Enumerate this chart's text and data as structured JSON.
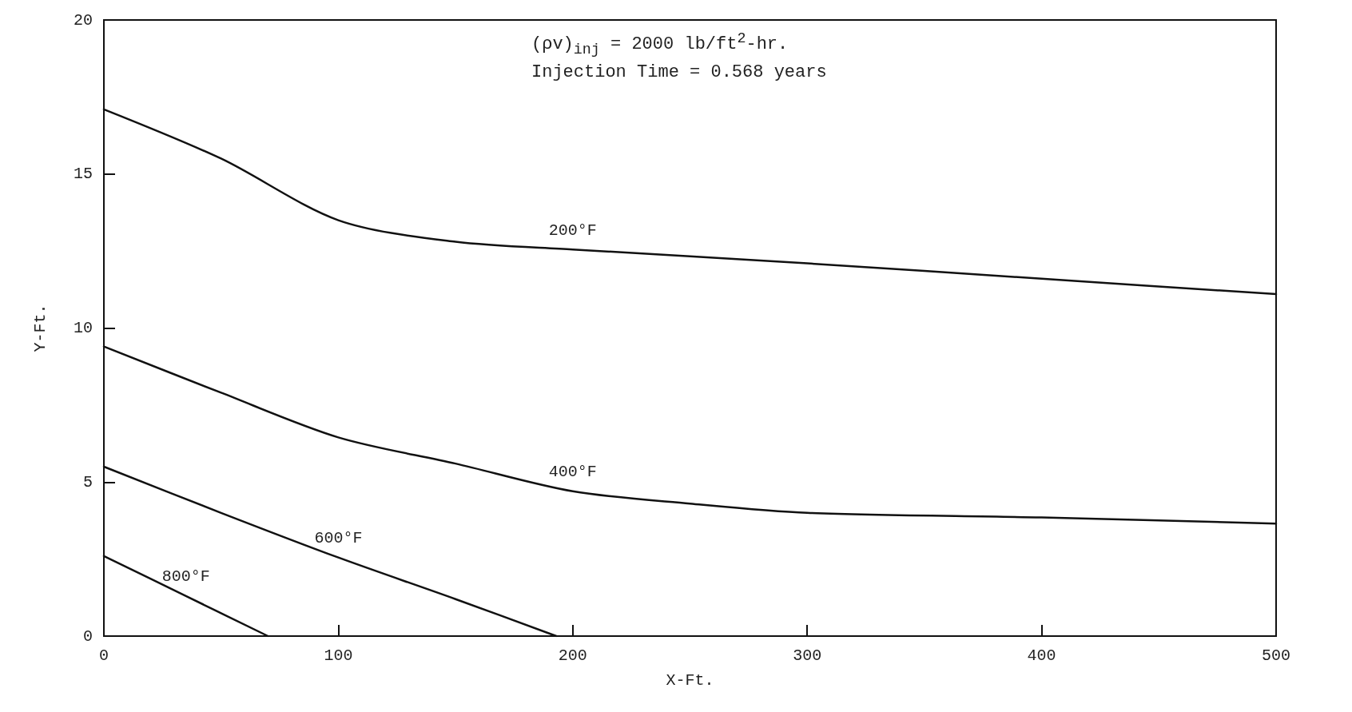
{
  "chart_data": {
    "type": "line",
    "xlabel": "X-Ft.",
    "ylabel": "Y-Ft.",
    "xlim": [
      0,
      500
    ],
    "xticks": [
      0,
      100,
      200,
      300,
      400,
      500
    ],
    "ylim": [
      0,
      20
    ],
    "yticks": [
      0,
      5,
      10,
      15,
      20
    ],
    "grid": false,
    "legend": false,
    "marker": "none",
    "line_style": "solid",
    "annotations": [
      "(ρv)$_{inj}$ = 2000 lb/ft$^{2}$-hr.",
      "Injection Time = 0.568 years"
    ],
    "series": [
      {
        "name": "200°F",
        "color": "#111111",
        "x": [
          0,
          50,
          100,
          150,
          200,
          300,
          400,
          500
        ],
        "values": [
          17.1,
          15.5,
          13.5,
          12.8,
          12.55,
          12.1,
          11.6,
          11.1
        ]
      },
      {
        "name": "400°F",
        "color": "#111111",
        "x": [
          0,
          50,
          100,
          150,
          200,
          250,
          300,
          400,
          500
        ],
        "values": [
          9.4,
          7.9,
          6.45,
          5.6,
          4.7,
          4.3,
          4.0,
          3.85,
          3.65
        ]
      },
      {
        "name": "600°F",
        "color": "#111111",
        "x": [
          0,
          50,
          100,
          150,
          193
        ],
        "values": [
          5.5,
          4.0,
          2.55,
          1.2,
          0
        ]
      },
      {
        "name": "800°F",
        "color": "#111111",
        "x": [
          0,
          35,
          70
        ],
        "values": [
          2.6,
          1.3,
          0
        ]
      }
    ]
  }
}
